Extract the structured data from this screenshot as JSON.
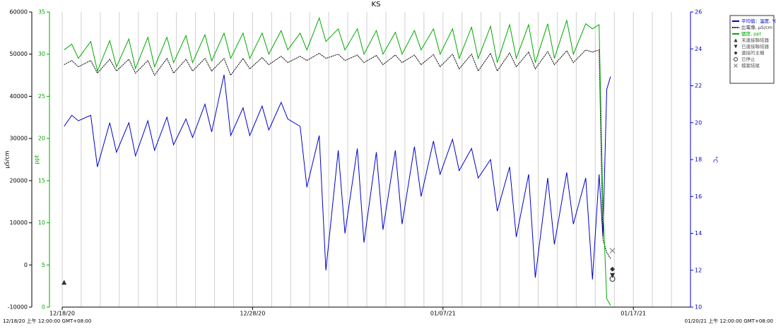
{
  "chart_data": {
    "type": "line",
    "title": "KS",
    "x_start_label": "12/18/20 上午 12:00:00 GMT+08:00",
    "x_end_label": "01/20/21 上午 12:00:00 GMT+08:00",
    "xlim": [
      0,
      33
    ],
    "xticks": [
      {
        "value": 0,
        "label": "12/18/20"
      },
      {
        "value": 10,
        "label": "12/28/20"
      },
      {
        "value": 20,
        "label": "01/07/21"
      },
      {
        "value": 30,
        "label": "01/17/21"
      }
    ],
    "grid": true,
    "ylabel": "μS/cm",
    "ylim": [
      -10000,
      60000
    ],
    "yticks": [
      -10000,
      0,
      10000,
      20000,
      30000,
      40000,
      50000,
      60000
    ],
    "y3label": "ppt",
    "y3lim": [
      0,
      35
    ],
    "y3ticks": [
      0,
      5,
      10,
      15,
      20,
      25,
      30,
      35
    ],
    "y2label": "°C",
    "y2lim": [
      10,
      26
    ],
    "y2ticks": [
      10,
      12,
      14,
      16,
      18,
      20,
      22,
      24,
      26
    ],
    "x": [
      0.1,
      0.5,
      0.85,
      1.5,
      1.85,
      2.5,
      2.85,
      3.5,
      3.85,
      4.5,
      4.85,
      5.5,
      5.85,
      6.5,
      6.85,
      7.5,
      7.85,
      8.5,
      8.85,
      9.5,
      9.85,
      10.5,
      10.85,
      11.5,
      11.85,
      12.5,
      12.85,
      13.5,
      13.85,
      14.5,
      14.85,
      15.5,
      15.85,
      16.5,
      16.85,
      17.5,
      17.85,
      18.5,
      18.85,
      19.5,
      19.85,
      20.5,
      20.85,
      21.5,
      21.85,
      22.5,
      22.85,
      23.5,
      23.85,
      24.5,
      24.85,
      25.5,
      25.85,
      26.5,
      26.85,
      27.5,
      27.85,
      28.2,
      28.4,
      28.6,
      28.8
    ],
    "series": [
      {
        "name": "平均值：溫度, °C",
        "color": "#0000cc",
        "axis": "y2",
        "dash": false,
        "values": [
          19.8,
          20.4,
          20.1,
          20.4,
          17.6,
          20.0,
          18.4,
          20.0,
          18.2,
          20.1,
          18.5,
          20.3,
          18.8,
          20.2,
          19.2,
          21.0,
          19.5,
          22.6,
          19.3,
          20.8,
          19.3,
          20.9,
          19.6,
          21.1,
          20.2,
          19.8,
          16.5,
          19.3,
          12.0,
          18.5,
          14.0,
          18.6,
          13.5,
          18.4,
          14.2,
          18.5,
          14.5,
          18.7,
          16.0,
          19.0,
          17.2,
          19.1,
          17.4,
          18.6,
          17.0,
          18.0,
          15.2,
          17.6,
          13.8,
          17.2,
          11.6,
          17.0,
          13.4,
          17.3,
          14.5,
          17.0,
          11.5,
          17.2,
          13.8,
          21.8,
          22.5
        ]
      },
      {
        "name": "比電導, μS/cm",
        "color": "#000000",
        "axis": "y",
        "dash": true,
        "values": [
          47500,
          48500,
          47000,
          48500,
          45500,
          48800,
          46000,
          48800,
          45500,
          48500,
          45000,
          49000,
          45500,
          48800,
          46000,
          49000,
          46000,
          49000,
          45000,
          49000,
          46500,
          49200,
          47500,
          49500,
          48000,
          49500,
          48500,
          50200,
          49000,
          50000,
          48500,
          49800,
          48000,
          49700,
          47500,
          49800,
          48000,
          49800,
          47500,
          49900,
          47000,
          50000,
          46500,
          50000,
          46000,
          50200,
          46000,
          50300,
          47000,
          50500,
          46500,
          50600,
          47500,
          50800,
          48000,
          51000,
          50500,
          51000,
          6000,
          3000,
          1500
        ]
      },
      {
        "name": "鹽度, ppt",
        "color": "#00aa00",
        "axis": "y3",
        "dash": false,
        "values": [
          30.5,
          31.2,
          29.5,
          31.5,
          28.0,
          31.6,
          28.5,
          31.8,
          28.3,
          32.0,
          28.5,
          32.0,
          29.0,
          32.2,
          29.0,
          32.3,
          29.2,
          32.5,
          29.5,
          32.5,
          29.5,
          32.5,
          30.0,
          32.8,
          30.5,
          32.5,
          30.5,
          34.3,
          31.5,
          33.0,
          30.5,
          33.0,
          30.0,
          32.8,
          30.0,
          32.6,
          30.0,
          32.8,
          30.5,
          33.0,
          30.0,
          33.0,
          29.5,
          33.2,
          29.5,
          33.3,
          29.0,
          33.5,
          29.5,
          33.5,
          29.0,
          33.6,
          29.5,
          34.0,
          30.0,
          33.6,
          33.0,
          33.5,
          12.0,
          1.0,
          0.2
        ]
      }
    ],
    "events": [
      {
        "name": "未連接聯結器",
        "symbol": "triangle-up",
        "x": 0.1,
        "y": -4100
      },
      {
        "name": "已連接聯結器",
        "symbol": "triangle-down",
        "x": 28.9,
        "y": -2500
      },
      {
        "name": "連接的主機",
        "symbol": "diamond",
        "x": 28.9,
        "y": -1000
      },
      {
        "name": "已停止",
        "symbol": "circle",
        "x": 28.9,
        "y": -3300
      },
      {
        "name": "檔案結尾",
        "symbol": "cross",
        "x": 28.9,
        "y": 3400
      }
    ]
  }
}
